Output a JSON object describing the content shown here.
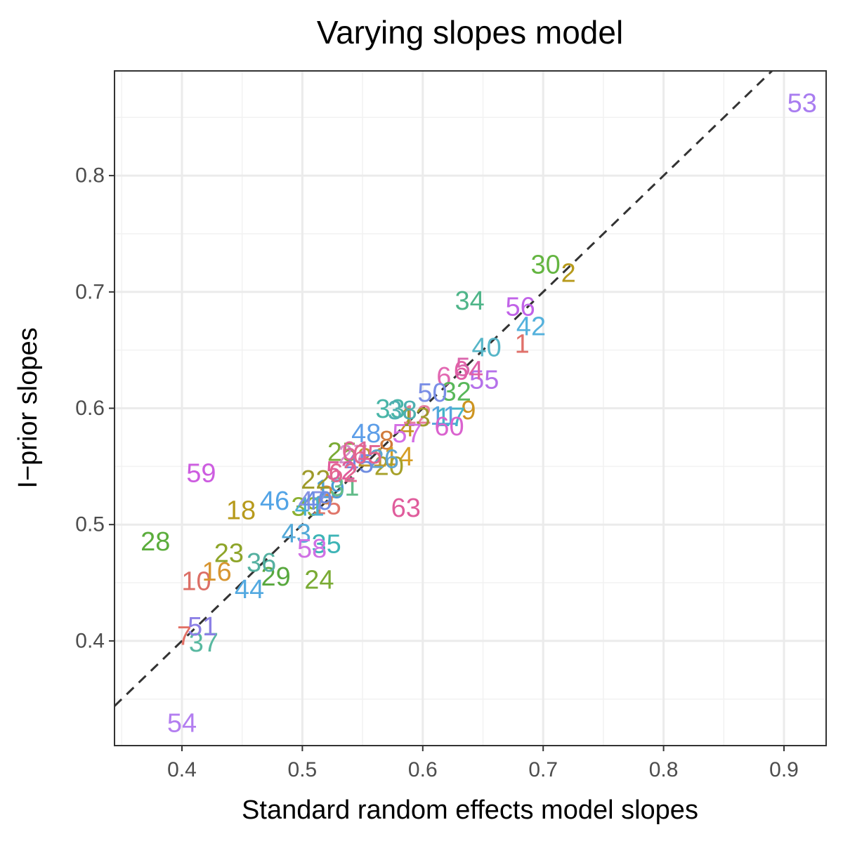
{
  "chart_data": {
    "type": "scatter",
    "title": "Varying slopes model",
    "xlabel": "Standard random effects model slopes",
    "ylabel": "I−prior slopes",
    "xlim": [
      0.344,
      0.935
    ],
    "ylim": [
      0.31,
      0.89
    ],
    "xticks": [
      0.4,
      0.5,
      0.6,
      0.7,
      0.8,
      0.9
    ],
    "xtick_labels": [
      "0.4",
      "0.5",
      "0.6",
      "0.7",
      "0.8",
      "0.9"
    ],
    "yticks": [
      0.4,
      0.5,
      0.6,
      0.7,
      0.8
    ],
    "ytick_labels": [
      "0.4",
      "0.5",
      "0.6",
      "0.7",
      "0.8"
    ],
    "grid": true,
    "reference_line": {
      "type": "identity",
      "style": "dashed",
      "color": "#333333"
    },
    "marker": "text labels (group id)",
    "points": [
      {
        "label": "1",
        "x": 0.6825,
        "y": 0.655,
        "color": "#E0706A"
      },
      {
        "label": "2",
        "x": 0.721,
        "y": 0.716,
        "color": "#B79A1C"
      },
      {
        "label": "3",
        "x": 0.52,
        "y": 0.525,
        "color": "#D4863A"
      },
      {
        "label": "4",
        "x": 0.587,
        "y": 0.583,
        "color": "#C5951E"
      },
      {
        "label": "5",
        "x": 0.6335,
        "y": 0.635,
        "color": "#DB66AD"
      },
      {
        "label": "6",
        "x": 0.6175,
        "y": 0.627,
        "color": "#E268B2"
      },
      {
        "label": "7",
        "x": 0.402,
        "y": 0.404,
        "color": "#E27166"
      },
      {
        "label": "8",
        "x": 0.57,
        "y": 0.572,
        "color": "#D17A3A"
      },
      {
        "label": "9",
        "x": 0.638,
        "y": 0.598,
        "color": "#CD9420"
      },
      {
        "label": "10",
        "x": 0.412,
        "y": 0.451,
        "color": "#DC6F66"
      },
      {
        "label": "11",
        "x": 0.6175,
        "y": 0.593,
        "color": "#55A5DD"
      },
      {
        "label": "12",
        "x": 0.595,
        "y": 0.594,
        "color": "#E77E9D"
      },
      {
        "label": "13",
        "x": 0.594,
        "y": 0.592,
        "color": "#9E9A2A"
      },
      {
        "label": "14",
        "x": 0.58,
        "y": 0.558,
        "color": "#D69E25"
      },
      {
        "label": "15",
        "x": 0.52,
        "y": 0.516,
        "color": "#E0766A"
      },
      {
        "label": "16",
        "x": 0.429,
        "y": 0.459,
        "color": "#D79530"
      },
      {
        "label": "17",
        "x": 0.623,
        "y": 0.592,
        "color": "#44B4C8"
      },
      {
        "label": "18",
        "x": 0.449,
        "y": 0.512,
        "color": "#B79A1C"
      },
      {
        "label": "19",
        "x": 0.523,
        "y": 0.53,
        "color": "#4C9ED4"
      },
      {
        "label": "20",
        "x": 0.572,
        "y": 0.55,
        "color": "#A7A12A"
      },
      {
        "label": "21",
        "x": 0.558,
        "y": 0.557,
        "color": "#C0992A"
      },
      {
        "label": "22",
        "x": 0.511,
        "y": 0.538,
        "color": "#9E9A2A"
      },
      {
        "label": "23",
        "x": 0.439,
        "y": 0.475,
        "color": "#8EA52A"
      },
      {
        "label": "24",
        "x": 0.514,
        "y": 0.452,
        "color": "#7AAB35"
      },
      {
        "label": "25",
        "x": 0.533,
        "y": 0.562,
        "color": "#7AAB35"
      },
      {
        "label": "26",
        "x": 0.568,
        "y": 0.556,
        "color": "#5FA4CE"
      },
      {
        "label": "27",
        "x": 0.542,
        "y": 0.56,
        "color": "#D68FC9"
      },
      {
        "label": "28",
        "x": 0.378,
        "y": 0.485,
        "color": "#5BAD3C"
      },
      {
        "label": "29",
        "x": 0.478,
        "y": 0.455,
        "color": "#58A83E"
      },
      {
        "label": "30",
        "x": 0.702,
        "y": 0.723,
        "color": "#64B541"
      },
      {
        "label": "31",
        "x": 0.535,
        "y": 0.532,
        "color": "#63BC8A"
      },
      {
        "label": "32",
        "x": 0.628,
        "y": 0.614,
        "color": "#58B75A"
      },
      {
        "label": "33",
        "x": 0.573,
        "y": 0.599,
        "color": "#48B5A7"
      },
      {
        "label": "34",
        "x": 0.639,
        "y": 0.692,
        "color": "#4FB589"
      },
      {
        "label": "35",
        "x": 0.52,
        "y": 0.483,
        "color": "#3DB4B6"
      },
      {
        "label": "36",
        "x": 0.466,
        "y": 0.467,
        "color": "#54B0A0"
      },
      {
        "label": "37",
        "x": 0.418,
        "y": 0.398,
        "color": "#58B8A0"
      },
      {
        "label": "38",
        "x": 0.583,
        "y": 0.598,
        "color": "#4FAFB1"
      },
      {
        "label": "39",
        "x": 0.503,
        "y": 0.515,
        "color": "#8CB030"
      },
      {
        "label": "40",
        "x": 0.653,
        "y": 0.652,
        "color": "#57B6C8"
      },
      {
        "label": "41",
        "x": 0.506,
        "y": 0.515,
        "color": "#49B0D0"
      },
      {
        "label": "42",
        "x": 0.69,
        "y": 0.67,
        "color": "#54B1DC"
      },
      {
        "label": "43",
        "x": 0.495,
        "y": 0.492,
        "color": "#54A9D8"
      },
      {
        "label": "44",
        "x": 0.456,
        "y": 0.444,
        "color": "#53A9E0"
      },
      {
        "label": "45",
        "x": 0.547,
        "y": 0.552,
        "color": "#6E8CE0"
      },
      {
        "label": "46",
        "x": 0.477,
        "y": 0.52,
        "color": "#53A4E6"
      },
      {
        "label": "47",
        "x": 0.509,
        "y": 0.52,
        "color": "#8792E3"
      },
      {
        "label": "48",
        "x": 0.553,
        "y": 0.578,
        "color": "#5D9EE8"
      },
      {
        "label": "49",
        "x": 0.513,
        "y": 0.52,
        "color": "#6F8DE4"
      },
      {
        "label": "50",
        "x": 0.608,
        "y": 0.613,
        "color": "#7A8EE6"
      },
      {
        "label": "51",
        "x": 0.417,
        "y": 0.412,
        "color": "#8C80E6"
      },
      {
        "label": "52",
        "x": 0.532,
        "y": 0.546,
        "color": "#E05C9C"
      },
      {
        "label": "53",
        "x": 0.915,
        "y": 0.862,
        "color": "#A97DF0"
      },
      {
        "label": "54",
        "x": 0.4,
        "y": 0.329,
        "color": "#B37EF0"
      },
      {
        "label": "55",
        "x": 0.651,
        "y": 0.624,
        "color": "#B571EA"
      },
      {
        "label": "56",
        "x": 0.681,
        "y": 0.687,
        "color": "#C163E8"
      },
      {
        "label": "57",
        "x": 0.587,
        "y": 0.578,
        "color": "#D46FE4"
      },
      {
        "label": "58",
        "x": 0.508,
        "y": 0.479,
        "color": "#D070E4"
      },
      {
        "label": "59",
        "x": 0.416,
        "y": 0.544,
        "color": "#CD5DE0"
      },
      {
        "label": "60",
        "x": 0.622,
        "y": 0.584,
        "color": "#DA63CF"
      },
      {
        "label": "61",
        "x": 0.545,
        "y": 0.563,
        "color": "#E06496"
      },
      {
        "label": "62",
        "x": 0.534,
        "y": 0.544,
        "color": "#E3668F"
      },
      {
        "label": "63",
        "x": 0.586,
        "y": 0.514,
        "color": "#E05C9C"
      },
      {
        "label": "64",
        "x": 0.638,
        "y": 0.632,
        "color": "#E060A6"
      },
      {
        "label": "65",
        "x": 0.554,
        "y": 0.56,
        "color": "#E26590"
      }
    ]
  }
}
